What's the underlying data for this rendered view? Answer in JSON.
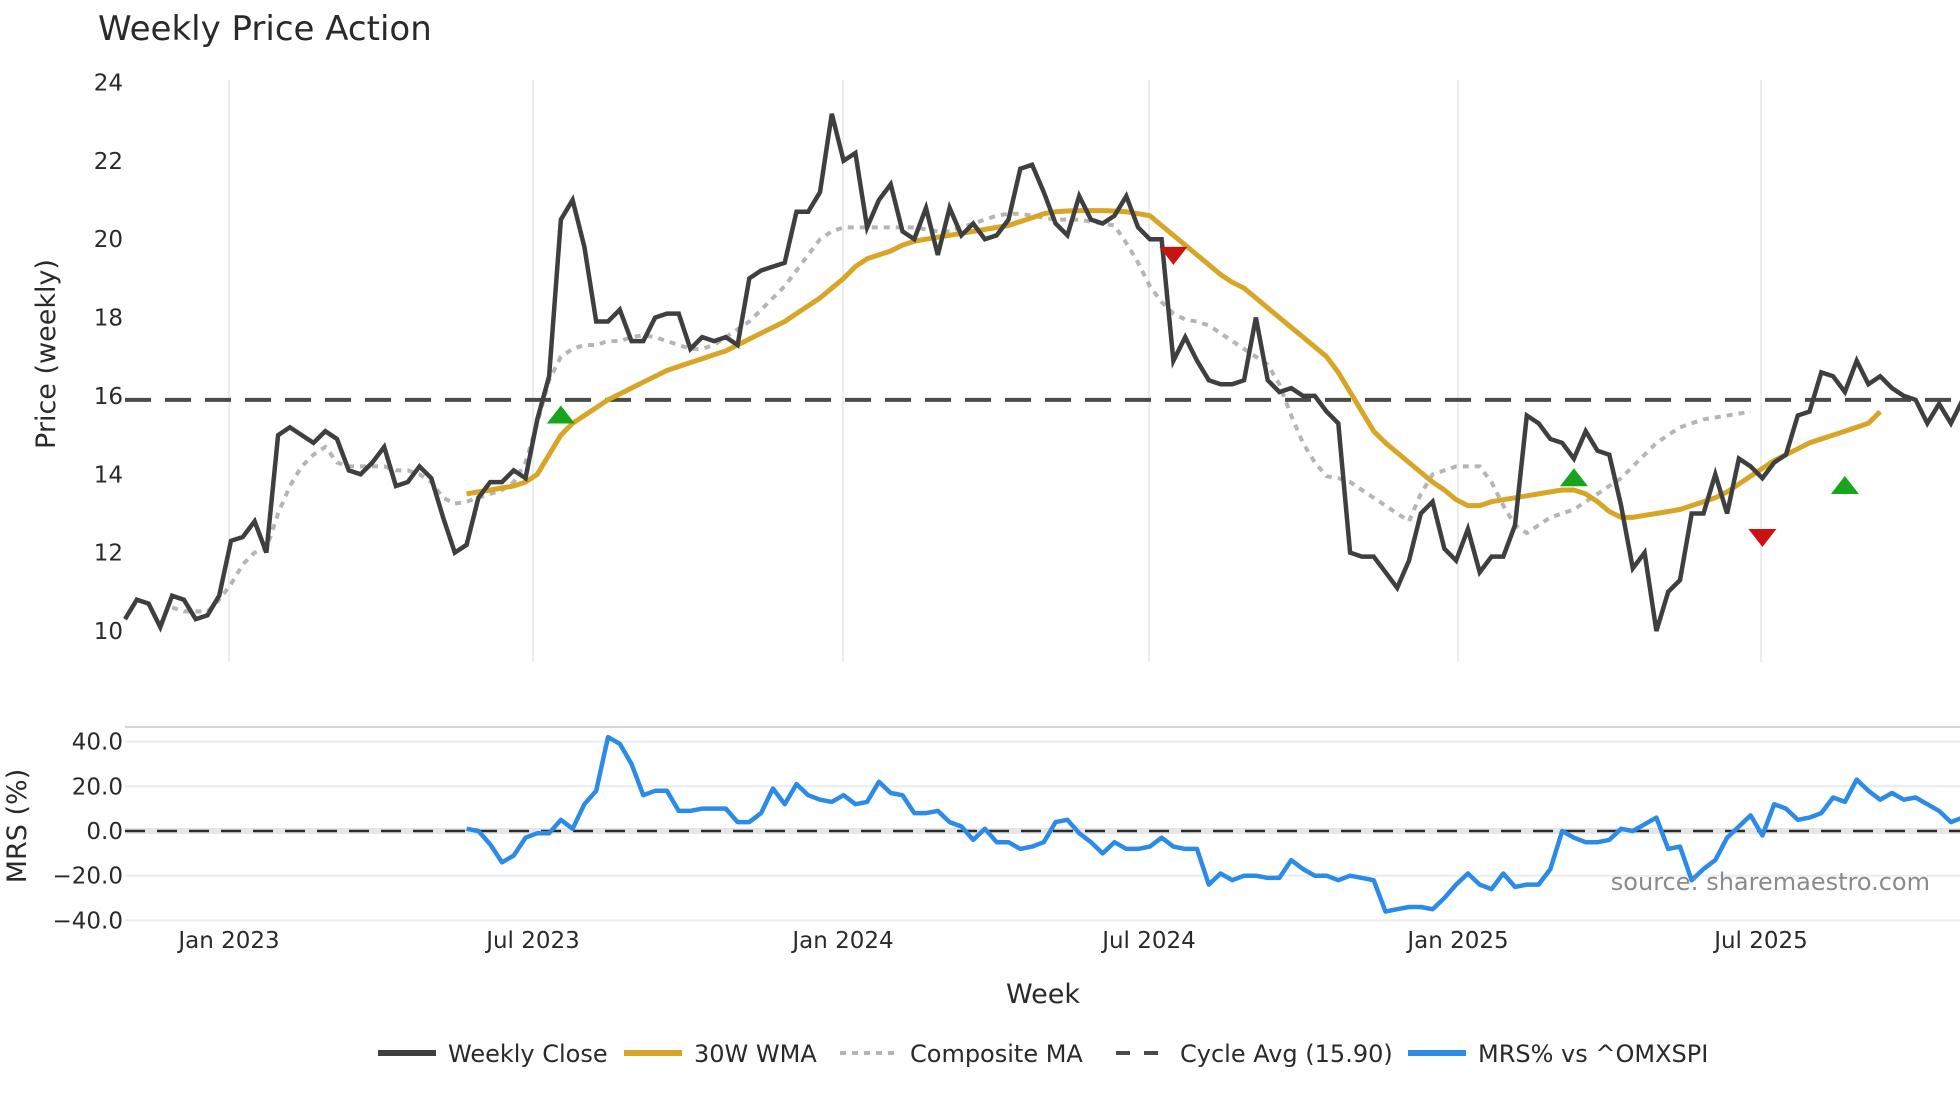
{
  "title": "Weekly Price Action",
  "source_note": "source: sharemaestro.com",
  "colors": {
    "weekly_close": "#3f3f3f",
    "wma30": "#d9a526",
    "composite_ma": "#b5b5b5",
    "cycle_avg": "#4a4a4a",
    "mrs": "#2b8be6",
    "buy_marker": "#18a41c",
    "sell_marker": "#cc1111",
    "grid": "#e8edf2"
  },
  "legend": [
    {
      "key": "weekly_close",
      "label": "Weekly Close",
      "style": "solid"
    },
    {
      "key": "wma30",
      "label": "30W WMA",
      "style": "solid"
    },
    {
      "key": "composite_ma",
      "label": "Composite MA",
      "style": "dotted"
    },
    {
      "key": "cycle_avg",
      "label": "Cycle Avg (15.90)",
      "style": "dashed"
    },
    {
      "key": "mrs",
      "label": "MRS% vs ^OMXSPI",
      "style": "solid"
    }
  ],
  "chart_data": [
    {
      "type": "line",
      "title": "Weekly Price Action",
      "xlabel": "Week",
      "ylabel": "Price (weekly)",
      "ylim": [
        9.5,
        24.3
      ],
      "yticks": [
        10,
        12,
        14,
        16,
        18,
        20,
        22,
        24
      ],
      "xticks": [
        "Jan 2023",
        "Jul 2023",
        "Jan 2024",
        "Jul 2024",
        "Jan 2025",
        "Jul 2025"
      ],
      "x_start_week_offset_from_jan2023": -9,
      "grid": true,
      "legend_position": "bottom",
      "cycle_avg": 15.9,
      "series": [
        {
          "name": "Weekly Close",
          "start_index": 0,
          "values": [
            10.3,
            10.8,
            10.7,
            10.1,
            10.9,
            10.8,
            10.3,
            10.4,
            10.9,
            12.3,
            12.4,
            12.8,
            12.0,
            15.0,
            15.2,
            15.0,
            14.8,
            15.1,
            14.9,
            14.1,
            14.0,
            14.3,
            14.7,
            13.7,
            13.8,
            14.2,
            13.9,
            12.9,
            12.0,
            12.2,
            13.4,
            13.8,
            13.8,
            14.1,
            13.9,
            15.4,
            16.5,
            20.5,
            21.0,
            19.8,
            17.9,
            17.9,
            18.2,
            17.4,
            17.4,
            18.0,
            18.1,
            18.1,
            17.2,
            17.5,
            17.4,
            17.5,
            17.3,
            19.0,
            19.2,
            19.3,
            19.4,
            20.7,
            20.7,
            21.2,
            23.2,
            22.0,
            22.2,
            20.3,
            21.0,
            21.4,
            20.2,
            20.0,
            20.8,
            19.6,
            20.8,
            20.1,
            20.4,
            20.0,
            20.1,
            20.5,
            21.8,
            21.9,
            21.2,
            20.4,
            20.1,
            21.1,
            20.5,
            20.4,
            20.6,
            21.1,
            20.3,
            20.0,
            20.0,
            16.9,
            17.5,
            16.9,
            16.4,
            16.3,
            16.3,
            16.4,
            18.0,
            16.4,
            16.1,
            16.2,
            16.0,
            16.0,
            15.6,
            15.3,
            12.0,
            11.9,
            11.9,
            11.5,
            11.1,
            11.8,
            13.0,
            13.3,
            12.1,
            11.8,
            12.6,
            11.5,
            11.9,
            11.9,
            12.7,
            15.5,
            15.3,
            14.9,
            14.8,
            14.4,
            15.1,
            14.6,
            14.5,
            13.2,
            11.6,
            12.0,
            10.0,
            11.0,
            11.3,
            13.0,
            13.0,
            14.0,
            13.0,
            14.4,
            14.2,
            13.9,
            14.3,
            14.5,
            15.5,
            15.6,
            16.6,
            16.5,
            16.1,
            16.9,
            16.3,
            16.5,
            16.2,
            16.0,
            15.9,
            15.3,
            15.8,
            15.3,
            15.9,
            15.7,
            17.5
          ]
        },
        {
          "name": "30W WMA",
          "start_index": 29,
          "values": [
            13.5,
            13.55,
            13.6,
            13.65,
            13.7,
            13.8,
            14.0,
            14.5,
            15.0,
            15.3,
            15.5,
            15.7,
            15.9,
            16.05,
            16.2,
            16.35,
            16.5,
            16.65,
            16.75,
            16.85,
            16.95,
            17.05,
            17.15,
            17.3,
            17.45,
            17.6,
            17.75,
            17.9,
            18.1,
            18.3,
            18.5,
            18.75,
            19.0,
            19.3,
            19.5,
            19.6,
            19.7,
            19.85,
            19.95,
            20.0,
            20.05,
            20.1,
            20.15,
            20.2,
            20.25,
            20.3,
            20.35,
            20.45,
            20.55,
            20.65,
            20.7,
            20.72,
            20.73,
            20.73,
            20.73,
            20.72,
            20.7,
            20.65,
            20.6,
            20.35,
            20.1,
            19.85,
            19.6,
            19.35,
            19.1,
            18.9,
            18.75,
            18.5,
            18.25,
            18.0,
            17.75,
            17.5,
            17.25,
            17.0,
            16.6,
            16.1,
            15.6,
            15.1,
            14.8,
            14.55,
            14.3,
            14.05,
            13.8,
            13.6,
            13.35,
            13.2,
            13.2,
            13.3,
            13.35,
            13.4,
            13.45,
            13.5,
            13.55,
            13.6,
            13.6,
            13.5,
            13.3,
            13.05,
            12.9,
            12.9,
            12.95,
            13.0,
            13.05,
            13.1,
            13.2,
            13.3,
            13.4,
            13.55,
            13.75,
            13.95,
            14.15,
            14.35,
            14.5,
            14.65,
            14.8,
            14.9,
            15.0,
            15.1,
            15.2,
            15.3,
            15.6
          ]
        },
        {
          "name": "Composite MA",
          "start_index": 4,
          "values": [
            10.6,
            10.5,
            10.5,
            10.5,
            10.8,
            11.2,
            11.7,
            12.0,
            12.1,
            13.0,
            13.7,
            14.2,
            14.5,
            14.7,
            14.3,
            14.2,
            14.2,
            14.2,
            14.2,
            14.1,
            14.1,
            14.0,
            13.8,
            13.4,
            13.25,
            13.3,
            13.4,
            13.5,
            13.6,
            13.8,
            14.3,
            15.3,
            16.4,
            17.0,
            17.2,
            17.3,
            17.3,
            17.4,
            17.4,
            17.5,
            17.55,
            17.5,
            17.4,
            17.3,
            17.2,
            17.2,
            17.3,
            17.5,
            17.7,
            17.9,
            18.2,
            18.5,
            18.8,
            19.2,
            19.6,
            20.0,
            20.2,
            20.3,
            20.3,
            20.3,
            20.3,
            20.3,
            20.3,
            20.3,
            20.25,
            20.2,
            20.2,
            20.3,
            20.4,
            20.5,
            20.6,
            20.65,
            20.65,
            20.6,
            20.55,
            20.5,
            20.5,
            20.5,
            20.45,
            20.4,
            20.35,
            19.9,
            19.4,
            18.8,
            18.4,
            18.1,
            17.95,
            17.9,
            17.8,
            17.6,
            17.4,
            17.2,
            17.0,
            16.8,
            16.3,
            15.5,
            14.8,
            14.3,
            13.95,
            13.9,
            13.8,
            13.6,
            13.4,
            13.2,
            13.0,
            12.8,
            13.5,
            14.0,
            14.1,
            14.2,
            14.2,
            14.2,
            13.8,
            13.2,
            12.7,
            12.5,
            12.7,
            12.9,
            13.0,
            13.1,
            13.3,
            13.5,
            13.7,
            13.9,
            14.2,
            14.5,
            14.8,
            15.0,
            15.2,
            15.3,
            15.4,
            15.45,
            15.5,
            15.55,
            15.6
          ]
        },
        {
          "name": "Cycle Avg (15.90)",
          "constant": 15.9
        }
      ],
      "markers": [
        {
          "type": "buy",
          "index": 37,
          "value": 15.5
        },
        {
          "type": "sell",
          "index": 89,
          "value": 19.6
        },
        {
          "type": "buy",
          "index": 123,
          "value": 13.9
        },
        {
          "type": "sell",
          "index": 139,
          "value": 12.4
        },
        {
          "type": "buy",
          "index": 146,
          "value": 13.7
        }
      ]
    },
    {
      "type": "line",
      "title": "",
      "xlabel": "Week",
      "ylabel": "MRS (%)",
      "ylim": [
        -40,
        47
      ],
      "yticks": [
        "40.0",
        "20.0",
        "0.0",
        "−20.0",
        "−40.0"
      ],
      "ytick_values": [
        40,
        20,
        0,
        -20,
        -40
      ],
      "reference_line": 0,
      "series": [
        {
          "name": "MRS% vs ^OMXSPI",
          "start_index": 29,
          "values": [
            1,
            0,
            -6,
            -14,
            -11,
            -3,
            -1,
            -1,
            5,
            1,
            12,
            18,
            42,
            39,
            30,
            16,
            18,
            18,
            9,
            9,
            10,
            10,
            10,
            4,
            4,
            8,
            19,
            12,
            21,
            16,
            14,
            13,
            16,
            12,
            13,
            22,
            17,
            16,
            8,
            8,
            9,
            4,
            2,
            -4,
            1,
            -5,
            -5,
            -8,
            -7,
            -5,
            4,
            5,
            -1,
            -5,
            -10,
            -5,
            -8,
            -8,
            -7,
            -3,
            -7,
            -8,
            -8,
            -24,
            -19,
            -22,
            -20,
            -20,
            -21,
            -21,
            -13,
            -17,
            -20,
            -20,
            -22,
            -20,
            -21,
            -22,
            -36,
            -35,
            -34,
            -34,
            -35,
            -30,
            -24,
            -19,
            -24,
            -26,
            -19,
            -25,
            -24,
            -24,
            -17,
            0,
            -3,
            -5,
            -5,
            -4,
            1,
            0,
            3,
            6,
            -8,
            -7,
            -22,
            -17,
            -13,
            -3,
            2,
            7,
            -2,
            12,
            10,
            5,
            6,
            8,
            15,
            13,
            23,
            18,
            14,
            17,
            14,
            15,
            12,
            9,
            4,
            6,
            3,
            7,
            4,
            12
          ]
        }
      ]
    }
  ],
  "axes": {
    "price": {
      "ylabel": "Price (weekly)",
      "ticks": [
        "24",
        "22",
        "20",
        "18",
        "16",
        "14",
        "12",
        "10"
      ]
    },
    "mrs": {
      "ylabel": "MRS (%)",
      "ticks": [
        "40.0",
        "20.0",
        "0.0",
        "−20.0",
        "−40.0"
      ]
    },
    "x": {
      "label": "Week",
      "ticks": [
        "Jan 2023",
        "Jul 2023",
        "Jan 2024",
        "Jul 2024",
        "Jan 2025",
        "Jul 2025"
      ]
    }
  }
}
